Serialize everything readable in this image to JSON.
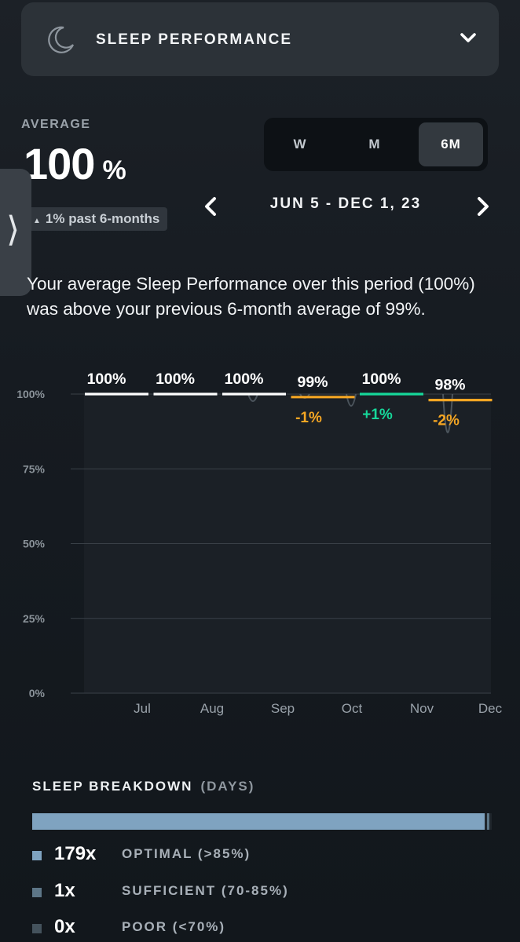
{
  "header": {
    "title": "SLEEP PERFORMANCE",
    "icon": "moon-icon"
  },
  "summary_stats": {
    "average_label": "AVERAGE",
    "average_value": "100",
    "average_unit": "%",
    "trend_text": "1% past 6-months"
  },
  "range_tabs": [
    {
      "label": "W",
      "active": false
    },
    {
      "label": "M",
      "active": false
    },
    {
      "label": "6M",
      "active": true
    }
  ],
  "date_range": "JUN 5 - DEC 1, 23",
  "description": "Your average Sleep Performance over this period (100%) was above your previous 6-month average of 99%.",
  "chart_data": {
    "type": "line",
    "ylim": [
      0,
      100
    ],
    "y_ticks": [
      "100%",
      "75%",
      "50%",
      "25%",
      "0%"
    ],
    "x_ticks": [
      "Jul",
      "Aug",
      "Sep",
      "Oct",
      "Nov",
      "Dec"
    ],
    "monthly": [
      {
        "value": 100,
        "label": "100%",
        "delta": "",
        "color": "#ffffff"
      },
      {
        "value": 100,
        "label": "100%",
        "delta": "",
        "color": "#ffffff"
      },
      {
        "value": 100,
        "label": "100%",
        "delta": "",
        "color": "#ffffff"
      },
      {
        "value": 99,
        "label": "99%",
        "delta": "-1%",
        "color": "#f5a623"
      },
      {
        "value": 100,
        "label": "100%",
        "delta": "+1%",
        "color": "#16d89a"
      },
      {
        "value": 98,
        "label": "98%",
        "delta": "-2%",
        "color": "#f5a623"
      }
    ]
  },
  "breakdown": {
    "title": "SLEEP BREAKDOWN",
    "subtitle": "(DAYS)",
    "optimal_fraction": 0.985,
    "sufficient_fraction": 0.005,
    "items": [
      {
        "count": "179x",
        "label": "OPTIMAL (>85%)",
        "color": "#7fa3c0"
      },
      {
        "count": "1x",
        "label": "SUFFICIENT (70-85%)",
        "color": "#5d7687"
      },
      {
        "count": "0x",
        "label": "POOR (<70%)",
        "color": "#44525c"
      }
    ]
  }
}
